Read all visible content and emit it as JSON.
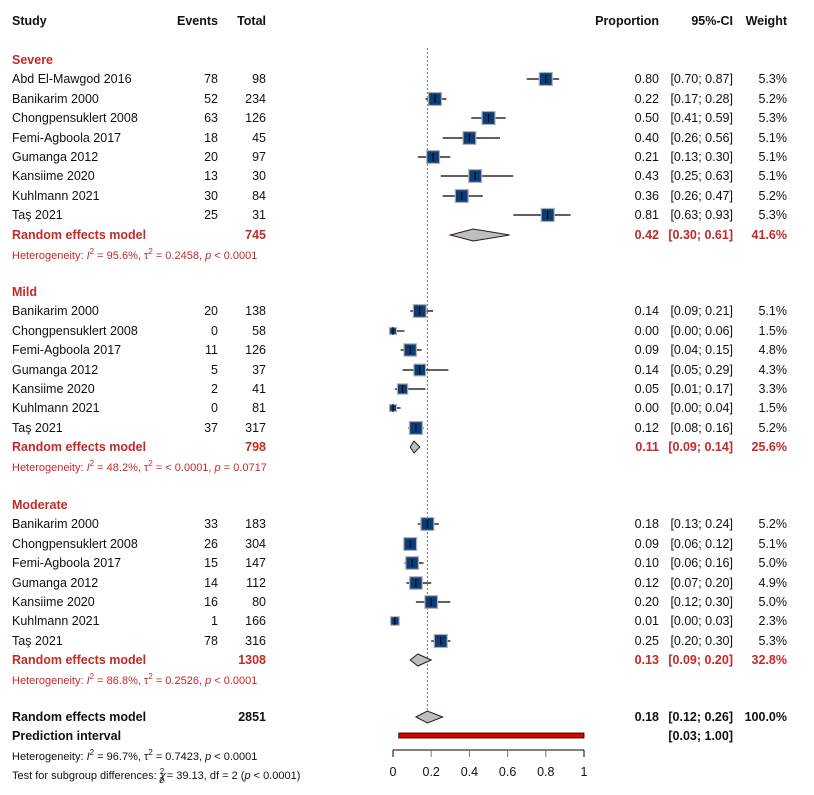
{
  "chart_data": {
    "type": "forest",
    "title": "",
    "columns": {
      "study": "Study",
      "events": "Events",
      "total": "Total",
      "proportion": "Proportion",
      "ci": "95%-CI",
      "weight": "Weight"
    },
    "xlim": [
      0,
      1
    ],
    "xticks": [
      0,
      0.2,
      0.4,
      0.6,
      0.8,
      1
    ],
    "xtick_labels": [
      "0",
      "0.2",
      "0.4",
      "0.6",
      "0.8",
      "1"
    ],
    "reference_line": 0.18,
    "colors": {
      "square": "#0C3C78",
      "square_border": "#B0B0B0",
      "diamond": "#BEBEBE",
      "subgroup_text": "#C62828",
      "prediction_interval": "#E00000"
    },
    "subgroups": [
      {
        "name": "Severe",
        "studies": [
          {
            "study": "Abd El-Mawgod 2016",
            "events": 78,
            "total": 98,
            "prop": 0.8,
            "lo": 0.7,
            "hi": 0.87,
            "prop_label": "0.80",
            "ci_label": "[0.70; 0.87]",
            "weight": 5.3,
            "weight_label": "5.3%"
          },
          {
            "study": "Banikarim 2000",
            "events": 52,
            "total": 234,
            "prop": 0.22,
            "lo": 0.17,
            "hi": 0.28,
            "prop_label": "0.22",
            "ci_label": "[0.17; 0.28]",
            "weight": 5.2,
            "weight_label": "5.2%"
          },
          {
            "study": "Chongpensuklert 2008",
            "events": 63,
            "total": 126,
            "prop": 0.5,
            "lo": 0.41,
            "hi": 0.59,
            "prop_label": "0.50",
            "ci_label": "[0.41; 0.59]",
            "weight": 5.3,
            "weight_label": "5.3%"
          },
          {
            "study": "Femi-Agboola 2017",
            "events": 18,
            "total": 45,
            "prop": 0.4,
            "lo": 0.26,
            "hi": 0.56,
            "prop_label": "0.40",
            "ci_label": "[0.26; 0.56]",
            "weight": 5.1,
            "weight_label": "5.1%"
          },
          {
            "study": "Gumanga 2012",
            "events": 20,
            "total": 97,
            "prop": 0.21,
            "lo": 0.13,
            "hi": 0.3,
            "prop_label": "0.21",
            "ci_label": "[0.13; 0.30]",
            "weight": 5.1,
            "weight_label": "5.1%"
          },
          {
            "study": "Kansiime 2020",
            "events": 13,
            "total": 30,
            "prop": 0.43,
            "lo": 0.25,
            "hi": 0.63,
            "prop_label": "0.43",
            "ci_label": "[0.25; 0.63]",
            "weight": 5.1,
            "weight_label": "5.1%"
          },
          {
            "study": "Kuhlmann 2021",
            "events": 30,
            "total": 84,
            "prop": 0.36,
            "lo": 0.26,
            "hi": 0.47,
            "prop_label": "0.36",
            "ci_label": "[0.26; 0.47]",
            "weight": 5.2,
            "weight_label": "5.2%"
          },
          {
            "study": "Taş 2021",
            "events": 25,
            "total": 31,
            "prop": 0.81,
            "lo": 0.63,
            "hi": 0.93,
            "prop_label": "0.81",
            "ci_label": "[0.63; 0.93]",
            "weight": 5.3,
            "weight_label": "5.3%"
          }
        ],
        "model": {
          "label": "Random effects model",
          "total": 745,
          "prop": 0.42,
          "lo": 0.3,
          "hi": 0.61,
          "prop_label": "0.42",
          "ci_label": "[0.30; 0.61]",
          "weight_label": "41.6%"
        },
        "heterogeneity": {
          "prefix": "Heterogeneity: ",
          "I2": "95.6%",
          "tau2": "0.2458",
          "p": "< 0.0001"
        }
      },
      {
        "name": "Mild",
        "studies": [
          {
            "study": "Banikarim 2000",
            "events": 20,
            "total": 138,
            "prop": 0.14,
            "lo": 0.09,
            "hi": 0.21,
            "prop_label": "0.14",
            "ci_label": "[0.09; 0.21]",
            "weight": 5.1,
            "weight_label": "5.1%"
          },
          {
            "study": "Chongpensuklert 2008",
            "events": 0,
            "total": 58,
            "prop": 0.0,
            "lo": 0.0,
            "hi": 0.06,
            "prop_label": "0.00",
            "ci_label": "[0.00; 0.06]",
            "weight": 1.5,
            "weight_label": "1.5%"
          },
          {
            "study": "Femi-Agboola 2017",
            "events": 11,
            "total": 126,
            "prop": 0.09,
            "lo": 0.04,
            "hi": 0.15,
            "prop_label": "0.09",
            "ci_label": "[0.04; 0.15]",
            "weight": 4.8,
            "weight_label": "4.8%"
          },
          {
            "study": "Gumanga 2012",
            "events": 5,
            "total": 37,
            "prop": 0.14,
            "lo": 0.05,
            "hi": 0.29,
            "prop_label": "0.14",
            "ci_label": "[0.05; 0.29]",
            "weight": 4.3,
            "weight_label": "4.3%"
          },
          {
            "study": "Kansiime 2020",
            "events": 2,
            "total": 41,
            "prop": 0.05,
            "lo": 0.01,
            "hi": 0.17,
            "prop_label": "0.05",
            "ci_label": "[0.01; 0.17]",
            "weight": 3.3,
            "weight_label": "3.3%"
          },
          {
            "study": "Kuhlmann 2021",
            "events": 0,
            "total": 81,
            "prop": 0.0,
            "lo": 0.0,
            "hi": 0.04,
            "prop_label": "0.00",
            "ci_label": "[0.00; 0.04]",
            "weight": 1.5,
            "weight_label": "1.5%"
          },
          {
            "study": "Taş 2021",
            "events": 37,
            "total": 317,
            "prop": 0.12,
            "lo": 0.08,
            "hi": 0.16,
            "prop_label": "0.12",
            "ci_label": "[0.08; 0.16]",
            "weight": 5.2,
            "weight_label": "5.2%"
          }
        ],
        "model": {
          "label": "Random effects model",
          "total": 798,
          "prop": 0.11,
          "lo": 0.09,
          "hi": 0.14,
          "prop_label": "0.11",
          "ci_label": "[0.09; 0.14]",
          "weight_label": "25.6%"
        },
        "heterogeneity": {
          "prefix": "Heterogeneity: ",
          "I2": "48.2%",
          "tau2": "< 0.0001",
          "p": "0.0717"
        }
      },
      {
        "name": "Moderate",
        "studies": [
          {
            "study": "Banikarim 2000",
            "events": 33,
            "total": 183,
            "prop": 0.18,
            "lo": 0.13,
            "hi": 0.24,
            "prop_label": "0.18",
            "ci_label": "[0.13; 0.24]",
            "weight": 5.2,
            "weight_label": "5.2%"
          },
          {
            "study": "Chongpensuklert 2008",
            "events": 26,
            "total": 304,
            "prop": 0.09,
            "lo": 0.06,
            "hi": 0.12,
            "prop_label": "0.09",
            "ci_label": "[0.06; 0.12]",
            "weight": 5.1,
            "weight_label": "5.1%"
          },
          {
            "study": "Femi-Agboola 2017",
            "events": 15,
            "total": 147,
            "prop": 0.1,
            "lo": 0.06,
            "hi": 0.16,
            "prop_label": "0.10",
            "ci_label": "[0.06; 0.16]",
            "weight": 5.0,
            "weight_label": "5.0%"
          },
          {
            "study": "Gumanga 2012",
            "events": 14,
            "total": 112,
            "prop": 0.12,
            "lo": 0.07,
            "hi": 0.2,
            "prop_label": "0.12",
            "ci_label": "[0.07; 0.20]",
            "weight": 4.9,
            "weight_label": "4.9%"
          },
          {
            "study": "Kansiime 2020",
            "events": 16,
            "total": 80,
            "prop": 0.2,
            "lo": 0.12,
            "hi": 0.3,
            "prop_label": "0.20",
            "ci_label": "[0.12; 0.30]",
            "weight": 5.0,
            "weight_label": "5.0%"
          },
          {
            "study": "Kuhlmann 2021",
            "events": 1,
            "total": 166,
            "prop": 0.01,
            "lo": 0.0,
            "hi": 0.03,
            "prop_label": "0.01",
            "ci_label": "[0.00; 0.03]",
            "weight": 2.3,
            "weight_label": "2.3%"
          },
          {
            "study": "Taş 2021",
            "events": 78,
            "total": 316,
            "prop": 0.25,
            "lo": 0.2,
            "hi": 0.3,
            "prop_label": "0.25",
            "ci_label": "[0.20; 0.30]",
            "weight": 5.3,
            "weight_label": "5.3%"
          }
        ],
        "model": {
          "label": "Random effects model",
          "total": 1308,
          "prop": 0.13,
          "lo": 0.09,
          "hi": 0.2,
          "prop_label": "0.13",
          "ci_label": "[0.09; 0.20]",
          "weight_label": "32.8%"
        },
        "heterogeneity": {
          "prefix": "Heterogeneity: ",
          "I2": "86.8%",
          "tau2": "0.2526",
          "p": "< 0.0001"
        }
      }
    ],
    "overall": {
      "label": "Random effects model",
      "total": 2851,
      "prop": 0.18,
      "lo": 0.12,
      "hi": 0.26,
      "prop_label": "0.18",
      "ci_label": "[0.12; 0.26]",
      "weight_label": "100.0%"
    },
    "prediction_interval": {
      "label": "Prediction interval",
      "lo": 0.03,
      "hi": 1.0,
      "ci_label": "[0.03; 1.00]"
    },
    "overall_heterogeneity": {
      "prefix": "Heterogeneity: ",
      "I2": "96.7%",
      "tau2": "0.7423",
      "p": "< 0.0001"
    },
    "subgroup_test": {
      "prefix": "Test for subgroup differences: ",
      "chi2": "39.13",
      "df": "2",
      "p": "< 0.0001"
    }
  }
}
